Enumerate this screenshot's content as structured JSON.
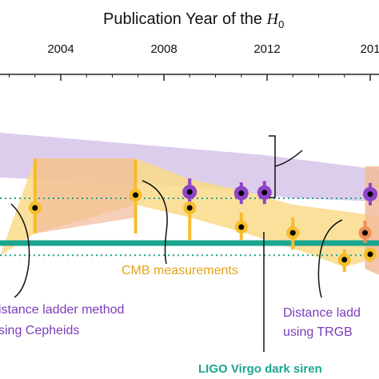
{
  "chart_data": {
    "type": "scatter",
    "title_prefix": "Publication Year of the ",
    "title_symbol": "H",
    "title_subscript": "0",
    "x_ticks": [
      2004,
      2008,
      2012,
      "201"
    ],
    "xlim": [
      1996,
      2016.5
    ],
    "colors": {
      "cepheid": "#8e44c9",
      "cmb": "#f6bd2a",
      "trgb": "#f08c55",
      "ligo": "#1aa68f",
      "cepheid_band": "#d9c8ea",
      "cmb_band": "#f9da8a",
      "trgb_band": "#f2bb9a"
    },
    "series": [
      {
        "name": "Distance ladder method using Cepheids",
        "points": [
          {
            "year": 2009.0,
            "center": 0.8,
            "low": 0.38,
            "high": 1.22
          },
          {
            "year": 2011.0,
            "center": 0.84,
            "low": 0.5,
            "high": 1.18
          },
          {
            "year": 2011.9,
            "center": 0.82,
            "low": 0.46,
            "high": 1.18
          },
          {
            "year": 2016.0,
            "center": 0.87,
            "low": 0.52,
            "high": 1.22
          }
        ]
      },
      {
        "name": "CMB measurements",
        "points": [
          {
            "year": 2003.0,
            "center": 1.3,
            "low": -0.25,
            "high": 2.1
          },
          {
            "year": 2006.9,
            "center": 0.9,
            "low": -0.2,
            "high": 2.1
          },
          {
            "year": 2009.0,
            "center": 1.3,
            "low": 0.4,
            "high": 2.3
          },
          {
            "year": 2011.0,
            "center": 1.9,
            "low": 1.45,
            "high": 2.3
          },
          {
            "year": 2013.0,
            "center": 2.08,
            "low": 1.6,
            "high": 2.6
          },
          {
            "year": 2015.0,
            "center": 2.92,
            "low": 2.6,
            "high": 3.3
          },
          {
            "year": 2016.0,
            "center": 2.75,
            "low": 2.55,
            "high": 3.0
          }
        ]
      },
      {
        "name": "Distance ladder using TRGB",
        "points": [
          {
            "year": 2015.8,
            "center": 2.08,
            "low": 1.7,
            "high": 2.4
          }
        ]
      }
    ],
    "reference_lines": [
      {
        "name": "LIGO Virgo dark siren",
        "level": 2.4,
        "style": "solid"
      },
      {
        "name": "",
        "level": 1.0,
        "style": "dotted"
      },
      {
        "name": "",
        "level": 2.78,
        "style": "dotted"
      }
    ],
    "annotations": {
      "cmb": [
        "CMB measurements"
      ],
      "cepheid": [
        "istance ladder method",
        "sing Cepheids"
      ],
      "trgb": [
        "Distance ladd",
        "using TRGB"
      ],
      "ligo": [
        "LIGO Virgo dark siren"
      ]
    }
  }
}
